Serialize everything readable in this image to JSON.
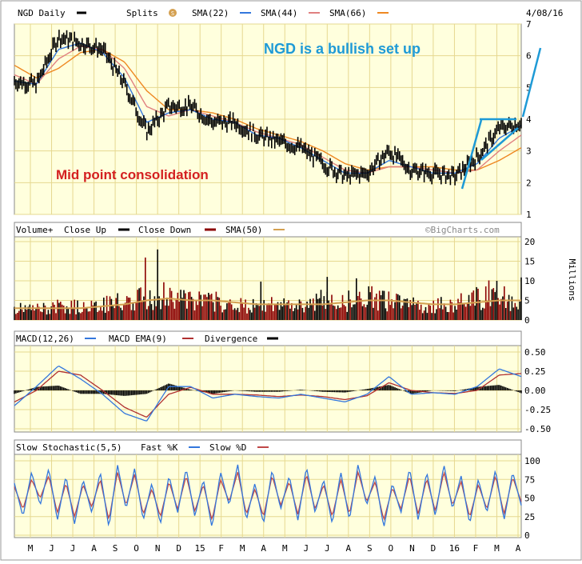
{
  "header": {
    "symbol": "NGD Daily",
    "splits_label": "Splits",
    "splits_badge": "S",
    "sma1": "SMA(22)",
    "sma2": "SMA(44)",
    "sma3": "SMA(66)",
    "date": "4/08/16"
  },
  "annotations": {
    "bullish": "NGD is a bullish set up",
    "consolidation": "Mid point consolidation"
  },
  "volume_header": {
    "vol": "Volume+",
    "close_up": "Close Up",
    "close_down": "Close Down",
    "sma": "SMA(50)",
    "brand": "©BigCharts.com"
  },
  "volume_unit": "Millions",
  "macd_header": {
    "macd": "MACD(12,26)",
    "ema": "MACD EMA(9)",
    "div": "Divergence"
  },
  "stoch_header": {
    "title": "Slow Stochastic(5,5)",
    "fast": "Fast %K",
    "slow": "Slow %D"
  },
  "x_labels": [
    "M",
    "J",
    "J",
    "A",
    "S",
    "O",
    "N",
    "D",
    "15",
    "F",
    "M",
    "A",
    "M",
    "J",
    "J",
    "A",
    "S",
    "O",
    "N",
    "D",
    "16",
    "F",
    "M",
    "A"
  ],
  "colors": {
    "price": "#000000",
    "sma22": "#3377dd",
    "sma44": "#e08080",
    "sma66": "#ee8822",
    "vol_up": "#000000",
    "vol_down": "#8b0000",
    "vol_sma": "#d4a050",
    "macd": "#3377dd",
    "macd_ema": "#b03030",
    "div": "#000000",
    "fastk": "#3377dd",
    "slowd": "#c04848",
    "panel_bg": "#ffffdd",
    "grid": "#e6d890",
    "bullish_text": "#1e9ad6",
    "consolidation_text": "#d42020",
    "trendline": "#1e9ad6"
  },
  "chart_data": [
    {
      "type": "line",
      "name": "price",
      "title": "NGD Daily",
      "ylim": [
        1,
        7
      ],
      "yticks": [
        "7",
        "6",
        "5",
        "4",
        "3",
        "2",
        "1"
      ],
      "x": [
        "May-14",
        "Jun-14",
        "Jul-14",
        "Aug-14",
        "Sep-14",
        "Oct-14",
        "Nov-14",
        "Dec-14",
        "Jan-15",
        "Feb-15",
        "Mar-15",
        "Apr-15",
        "May-15",
        "Jun-15",
        "Jul-15",
        "Aug-15",
        "Sep-15",
        "Oct-15",
        "Nov-15",
        "Dec-15",
        "Jan-16",
        "Feb-16",
        "Mar-16",
        "Apr-16"
      ],
      "series": [
        {
          "name": "NGD",
          "values": [
            5.2,
            5.1,
            6.6,
            6.4,
            6.2,
            5.1,
            3.6,
            4.4,
            4.4,
            3.9,
            3.9,
            3.5,
            3.3,
            3.1,
            2.6,
            2.2,
            2.3,
            3.0,
            2.4,
            2.3,
            2.2,
            2.8,
            3.7,
            3.9
          ]
        },
        {
          "name": "SMA(22)",
          "values": [
            5.2,
            5.1,
            6.2,
            6.4,
            6.1,
            5.3,
            3.9,
            4.2,
            4.3,
            4.0,
            3.9,
            3.5,
            3.4,
            3.1,
            2.7,
            2.3,
            2.3,
            2.7,
            2.5,
            2.3,
            2.3,
            2.6,
            3.4,
            3.8
          ]
        },
        {
          "name": "SMA(44)",
          "values": [
            5.4,
            5.1,
            5.9,
            6.3,
            6.2,
            5.6,
            4.4,
            4.1,
            4.3,
            4.1,
            3.9,
            3.6,
            3.4,
            3.2,
            2.8,
            2.4,
            2.3,
            2.5,
            2.5,
            2.4,
            2.3,
            2.4,
            3.0,
            3.5
          ]
        },
        {
          "name": "SMA(66)",
          "values": [
            5.7,
            5.3,
            5.6,
            6.1,
            6.2,
            5.8,
            4.9,
            4.3,
            4.3,
            4.2,
            4.0,
            3.7,
            3.5,
            3.3,
            3.0,
            2.6,
            2.4,
            2.5,
            2.5,
            2.5,
            2.4,
            2.4,
            2.7,
            3.1
          ]
        }
      ]
    },
    {
      "type": "bar",
      "name": "volume",
      "ylabel": "Millions",
      "ylim": [
        0,
        20
      ],
      "yticks": [
        "20",
        "15",
        "10",
        "5",
        "0"
      ],
      "x": [
        "May-14",
        "Jun-14",
        "Jul-14",
        "Aug-14",
        "Sep-14",
        "Oct-14",
        "Nov-14",
        "Dec-14",
        "Jan-15",
        "Feb-15",
        "Mar-15",
        "Apr-15",
        "May-15",
        "Jun-15",
        "Jul-15",
        "Aug-15",
        "Sep-15",
        "Oct-15",
        "Nov-15",
        "Dec-15",
        "Jan-16",
        "Feb-16",
        "Mar-16",
        "Apr-16"
      ],
      "series": [
        {
          "name": "Volume",
          "values": [
            3,
            3,
            3.5,
            3.5,
            4,
            5,
            6,
            7,
            5,
            5,
            4,
            4,
            4,
            4,
            5,
            5,
            6,
            5,
            4,
            4,
            4,
            6,
            6,
            5
          ]
        },
        {
          "name": "SMA(50)",
          "values": [
            3,
            3,
            3,
            3,
            3.5,
            4,
            5,
            5.5,
            5,
            5,
            4.5,
            4,
            4,
            4,
            4,
            4.5,
            5,
            5,
            4.5,
            4,
            4,
            4.5,
            5,
            5
          ]
        }
      ],
      "peaks": [
        {
          "x": "Nov-14",
          "value": 18
        },
        {
          "x": "Jul-15",
          "value": 11
        },
        {
          "x": "Mar-16",
          "value": 10
        }
      ]
    },
    {
      "type": "line",
      "name": "macd",
      "ylim": [
        -0.5,
        0.5
      ],
      "yticks": [
        "0.50",
        "0.25",
        "0.00",
        "-0.25",
        "-0.50"
      ],
      "x": [
        "May-14",
        "Jun-14",
        "Jul-14",
        "Aug-14",
        "Sep-14",
        "Oct-14",
        "Nov-14",
        "Dec-14",
        "Jan-15",
        "Feb-15",
        "Mar-15",
        "Apr-15",
        "May-15",
        "Jun-15",
        "Jul-15",
        "Aug-15",
        "Sep-15",
        "Oct-15",
        "Nov-15",
        "Dec-15",
        "Jan-16",
        "Feb-16",
        "Mar-16",
        "Apr-16"
      ],
      "series": [
        {
          "name": "MACD(12,26)",
          "values": [
            -0.2,
            0.05,
            0.32,
            0.15,
            -0.05,
            -0.3,
            -0.4,
            0.05,
            0.05,
            -0.1,
            -0.05,
            -0.08,
            -0.1,
            -0.05,
            -0.1,
            -0.15,
            -0.05,
            0.18,
            -0.05,
            -0.03,
            -0.05,
            0.05,
            0.28,
            0.18
          ]
        },
        {
          "name": "MACD EMA(9)",
          "values": [
            -0.15,
            0.0,
            0.25,
            0.2,
            0.0,
            -0.22,
            -0.35,
            -0.05,
            0.04,
            -0.05,
            -0.05,
            -0.06,
            -0.08,
            -0.06,
            -0.08,
            -0.12,
            -0.07,
            0.1,
            0.0,
            -0.03,
            -0.04,
            0.0,
            0.2,
            0.22
          ]
        }
      ]
    },
    {
      "type": "line",
      "name": "stochastic",
      "ylim": [
        0,
        100
      ],
      "yticks": [
        "100",
        "75",
        "50",
        "25",
        "0"
      ],
      "series": [
        {
          "name": "Fast %K",
          "values": [
            70,
            25,
            85,
            40,
            90,
            20,
            80,
            15,
            75,
            30,
            85,
            10,
            95,
            35,
            90,
            20,
            70,
            15,
            80,
            30,
            90,
            25,
            75,
            10,
            85,
            40,
            95,
            20,
            70,
            15,
            88,
            35,
            80,
            20,
            92,
            30,
            75,
            15,
            85,
            20,
            95,
            40,
            80,
            10,
            70,
            30,
            90,
            20,
            85,
            25,
            95,
            35,
            80,
            15,
            75,
            30,
            88,
            20,
            85,
            40
          ]
        },
        {
          "name": "Slow %D",
          "values": [
            65,
            35,
            75,
            50,
            80,
            30,
            70,
            25,
            68,
            38,
            75,
            20,
            85,
            40,
            82,
            28,
            62,
            25,
            72,
            35,
            80,
            32,
            68,
            20,
            75,
            45,
            85,
            28,
            62,
            25,
            80,
            40,
            72,
            28,
            82,
            35,
            68,
            25,
            75,
            28,
            85,
            45,
            72,
            20,
            64,
            35,
            80,
            28,
            76,
            32,
            85,
            40,
            72,
            24,
            68,
            35,
            80,
            28,
            78,
            45
          ]
        }
      ]
    }
  ]
}
